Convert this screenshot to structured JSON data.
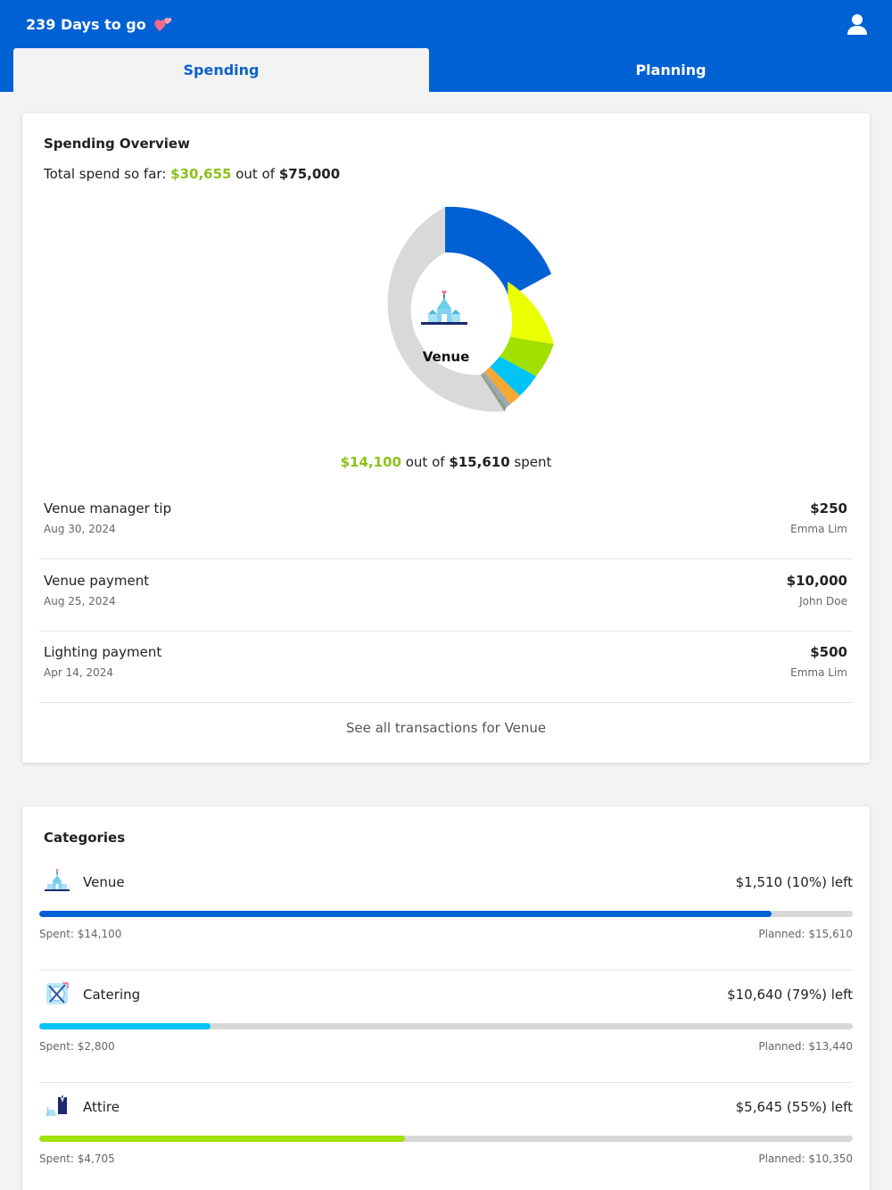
{
  "header": {
    "countdown": "239 Days to go",
    "tabs": [
      {
        "label": "Spending",
        "active": true
      },
      {
        "label": "Planning",
        "active": false
      }
    ],
    "icons": {
      "hearts": "hearts-icon",
      "profile": "profile-icon"
    }
  },
  "overview": {
    "title": "Spending Overview",
    "total_prefix": "Total spend so far:",
    "total_spent": "$30,655",
    "total_mid": "out of",
    "total_budget": "$75,000",
    "donut": {
      "selected": "Venue",
      "colors": {
        "venue": "#0061d5",
        "segment2": "#eaff00",
        "segment3": "#a2e000",
        "segment4": "#00c4f5",
        "segment5": "#f7a832",
        "remaining": "#d9d9d9"
      },
      "icon": "chapel-icon"
    },
    "category_spent": "$14,100",
    "category_mid": "out of",
    "category_planned": "$15,610",
    "category_suffix": "spent",
    "transactions": [
      {
        "name": "Venue manager tip",
        "date": "Aug 30, 2024",
        "amount": "$250",
        "payer": "Emma Lim"
      },
      {
        "name": "Venue payment",
        "date": "Aug 25, 2024",
        "amount": "$10,000",
        "payer": "John Doe"
      },
      {
        "name": "Lighting payment",
        "date": "Apr 14, 2024",
        "amount": "$500",
        "payer": "Emma Lim"
      }
    ],
    "see_all": "See all transactions for Venue"
  },
  "categories": {
    "title": "Categories",
    "items": [
      {
        "name": "Venue",
        "left": "$1,510 (10%) left",
        "spent": "Spent: $14,100",
        "planned": "Planned: $15,610",
        "progress": 0.9,
        "color": "#0061d5",
        "icon": "chapel-icon"
      },
      {
        "name": "Catering",
        "left": "$10,640 (79%) left",
        "spent": "Spent: $2,800",
        "planned": "Planned: $13,440",
        "progress": 0.21,
        "color": "#00c4f5",
        "icon": "plate-cutlery-icon"
      },
      {
        "name": "Attire",
        "left": "$5,645 (55%) left",
        "spent": "Spent: $4,705",
        "planned": "Planned: $10,350",
        "progress": 0.45,
        "color": "#a2e000",
        "icon": "tuxedo-dress-icon"
      }
    ]
  }
}
